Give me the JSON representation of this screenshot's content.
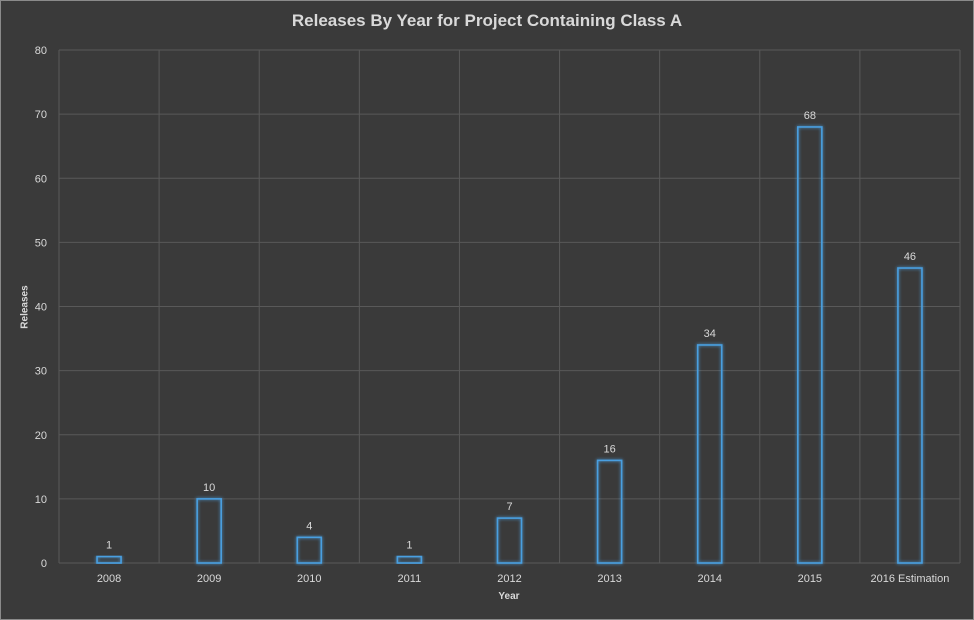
{
  "chart_data": {
    "type": "bar",
    "title": "Releases By Year for Project Containing Class A",
    "xlabel": "Year",
    "ylabel": "Releases",
    "categories": [
      "2008",
      "2009",
      "2010",
      "2011",
      "2012",
      "2013",
      "2014",
      "2015",
      "2016 Estimation"
    ],
    "values": [
      1,
      10,
      4,
      1,
      7,
      16,
      34,
      68,
      46
    ],
    "ylim": [
      0,
      80
    ],
    "yticks": [
      0,
      10,
      20,
      30,
      40,
      50,
      60,
      70,
      80
    ],
    "grid": true,
    "legend": "none",
    "colors": {
      "background": "#3a3a3a",
      "gridline": "#595959",
      "bar_outline": "#4a9fe0",
      "text": "#d9d9d9"
    }
  }
}
